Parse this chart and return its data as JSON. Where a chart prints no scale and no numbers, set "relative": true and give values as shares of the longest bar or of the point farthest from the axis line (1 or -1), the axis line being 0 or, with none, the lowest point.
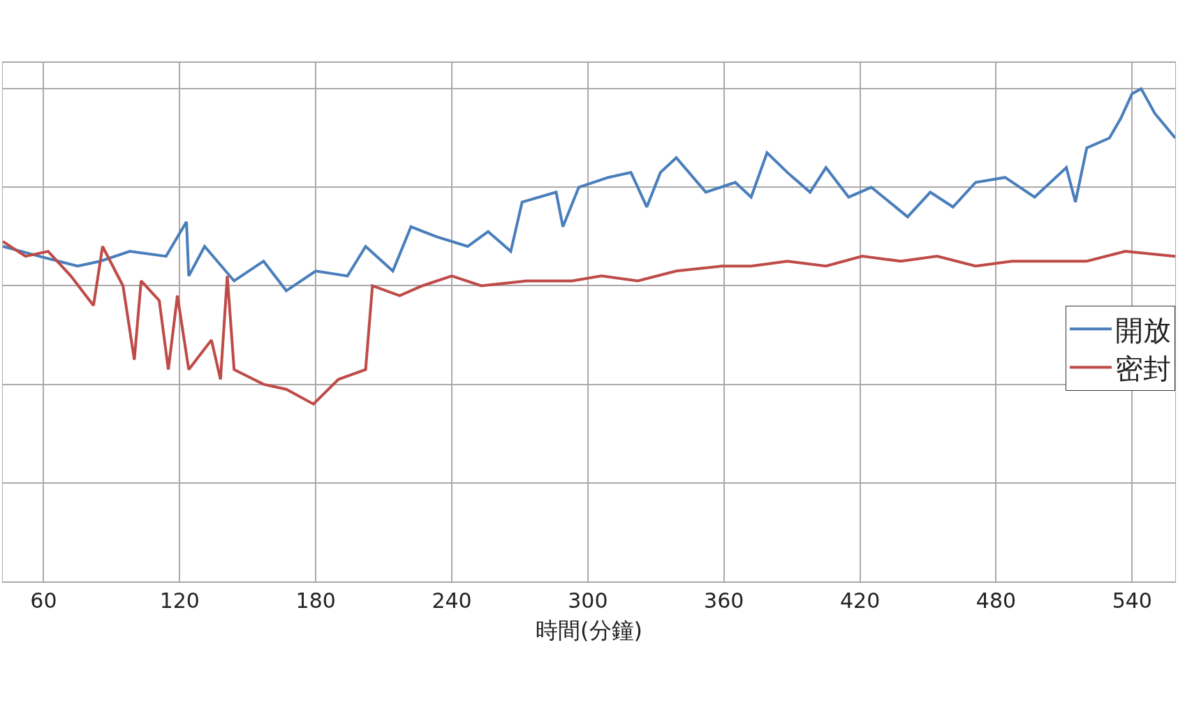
{
  "chart_data": {
    "type": "line",
    "relative": true,
    "xlabel": "時間(分鐘)",
    "xlim": [
      42,
      559
    ],
    "xticks": [
      60,
      120,
      180,
      240,
      300,
      360,
      420,
      480,
      540
    ],
    "grid": true,
    "legend": "right",
    "marker": "none",
    "line_style": "solid",
    "series": [
      {
        "name": "開放",
        "color": "#4a7ebb",
        "x": [
          42,
          58,
          75,
          85,
          98,
          114,
          123,
          124,
          131,
          144,
          157,
          167,
          180,
          194,
          202,
          214,
          222,
          233,
          247,
          256,
          266,
          271,
          286,
          289,
          296,
          309,
          319,
          326,
          332,
          339,
          352,
          365,
          372,
          379,
          388,
          398,
          405,
          415,
          425,
          441,
          451,
          461,
          471,
          484,
          497,
          511,
          515,
          520,
          530,
          535,
          540,
          544,
          550,
          559
        ],
        "values": [
          0.68,
          0.66,
          0.64,
          0.65,
          0.67,
          0.66,
          0.73,
          0.62,
          0.68,
          0.61,
          0.65,
          0.59,
          0.63,
          0.62,
          0.68,
          0.63,
          0.72,
          0.7,
          0.68,
          0.71,
          0.67,
          0.77,
          0.79,
          0.72,
          0.8,
          0.82,
          0.83,
          0.76,
          0.83,
          0.86,
          0.79,
          0.81,
          0.78,
          0.87,
          0.83,
          0.79,
          0.84,
          0.78,
          0.8,
          0.74,
          0.79,
          0.76,
          0.81,
          0.82,
          0.78,
          0.84,
          0.77,
          0.88,
          0.9,
          0.94,
          0.99,
          1.0,
          0.95,
          0.9
        ]
      },
      {
        "name": "密封",
        "color": "#be4b48",
        "x": [
          42,
          52,
          62,
          72,
          82,
          86,
          95,
          100,
          103,
          111,
          115,
          119,
          124,
          134,
          138,
          141,
          144,
          157,
          167,
          179,
          190,
          202,
          205,
          217,
          227,
          240,
          253,
          273,
          293,
          306,
          322,
          339,
          359,
          372,
          388,
          405,
          421,
          438,
          454,
          471,
          487,
          504,
          520,
          537,
          559
        ],
        "values": [
          0.69,
          0.66,
          0.67,
          0.62,
          0.56,
          0.68,
          0.6,
          0.45,
          0.61,
          0.57,
          0.43,
          0.58,
          0.43,
          0.49,
          0.41,
          0.62,
          0.43,
          0.4,
          0.39,
          0.36,
          0.41,
          0.43,
          0.6,
          0.58,
          0.6,
          0.62,
          0.6,
          0.61,
          0.61,
          0.62,
          0.61,
          0.63,
          0.64,
          0.64,
          0.65,
          0.64,
          0.66,
          0.65,
          0.66,
          0.64,
          0.65,
          0.65,
          0.65,
          0.67,
          0.66
        ]
      }
    ]
  }
}
